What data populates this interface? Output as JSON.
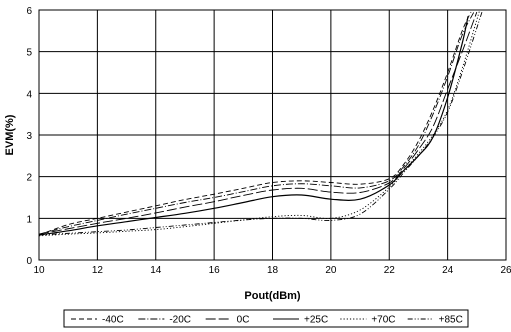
{
  "chart_data": {
    "type": "line",
    "xlabel": "Pout(dBm)",
    "ylabel": "EVM(%)",
    "xlim": [
      10,
      26
    ],
    "ylim": [
      0,
      6
    ],
    "xticks": [
      10,
      12,
      14,
      16,
      18,
      20,
      22,
      24,
      26
    ],
    "yticks": [
      0,
      1,
      2,
      3,
      4,
      5,
      6
    ],
    "grid": true,
    "legend_position": "bottom",
    "series": [
      {
        "name": "-40C",
        "dash": "dashed",
        "x": [
          10,
          11,
          12,
          13,
          14,
          15,
          16,
          17,
          18,
          19,
          20,
          21,
          22,
          22.5,
          23,
          23.5,
          24,
          24.5,
          24.8
        ],
        "y": [
          0.6,
          0.85,
          1.0,
          1.15,
          1.3,
          1.45,
          1.58,
          1.72,
          1.86,
          1.9,
          1.86,
          1.82,
          1.95,
          2.3,
          2.85,
          3.6,
          4.5,
          5.5,
          5.95
        ]
      },
      {
        "name": "-20C",
        "dash": "dash-dot-long",
        "x": [
          10,
          11,
          12,
          13,
          14,
          15,
          16,
          17,
          18,
          19,
          20,
          21,
          22,
          22.5,
          23,
          23.5,
          24,
          24.5,
          24.9
        ],
        "y": [
          0.62,
          0.8,
          0.95,
          1.1,
          1.24,
          1.38,
          1.5,
          1.64,
          1.78,
          1.83,
          1.78,
          1.73,
          1.9,
          2.25,
          2.75,
          3.5,
          4.4,
          5.4,
          5.95
        ]
      },
      {
        "name": "0C",
        "dash": "long-dash",
        "x": [
          10,
          11,
          12,
          13,
          14,
          15,
          16,
          17,
          18,
          19,
          20,
          21,
          22,
          22.5,
          23,
          23.5,
          24,
          24.5,
          25.0
        ],
        "y": [
          0.62,
          0.75,
          0.88,
          1.0,
          1.13,
          1.27,
          1.4,
          1.55,
          1.68,
          1.72,
          1.63,
          1.62,
          1.85,
          2.2,
          2.65,
          3.2,
          4.1,
          5.0,
          5.95
        ]
      },
      {
        "name": "+25C",
        "dash": "solid",
        "x": [
          10,
          11,
          12,
          13,
          14,
          15,
          16,
          17,
          18,
          19,
          20,
          21,
          22,
          22.5,
          23,
          23.5,
          24,
          24.5,
          24.7
        ],
        "y": [
          0.6,
          0.7,
          0.82,
          0.92,
          1.02,
          1.12,
          1.24,
          1.38,
          1.52,
          1.56,
          1.46,
          1.46,
          1.8,
          2.15,
          2.5,
          2.95,
          3.9,
          5.2,
          5.85
        ]
      },
      {
        "name": "+70C",
        "dash": "dotted",
        "x": [
          10,
          11,
          12,
          13,
          14,
          15,
          16,
          17,
          18,
          19,
          20,
          21,
          22,
          22.5,
          23,
          23.5,
          24,
          24.5,
          25.1
        ],
        "y": [
          0.58,
          0.62,
          0.65,
          0.69,
          0.73,
          0.8,
          0.88,
          0.96,
          1.04,
          1.07,
          1.0,
          1.2,
          1.75,
          2.15,
          2.55,
          3.0,
          3.6,
          4.6,
          6.0
        ]
      },
      {
        "name": "+85C",
        "dash": "dash-dot-dot",
        "x": [
          10,
          11,
          12,
          13,
          14,
          15,
          16,
          17,
          18,
          19,
          20,
          21,
          22,
          22.5,
          23,
          23.5,
          24,
          24.5,
          25.2
        ],
        "y": [
          0.6,
          0.64,
          0.68,
          0.72,
          0.78,
          0.84,
          0.9,
          0.96,
          1.0,
          1.0,
          0.95,
          1.1,
          1.7,
          2.1,
          2.5,
          2.95,
          3.55,
          4.5,
          6.0
        ]
      }
    ]
  }
}
